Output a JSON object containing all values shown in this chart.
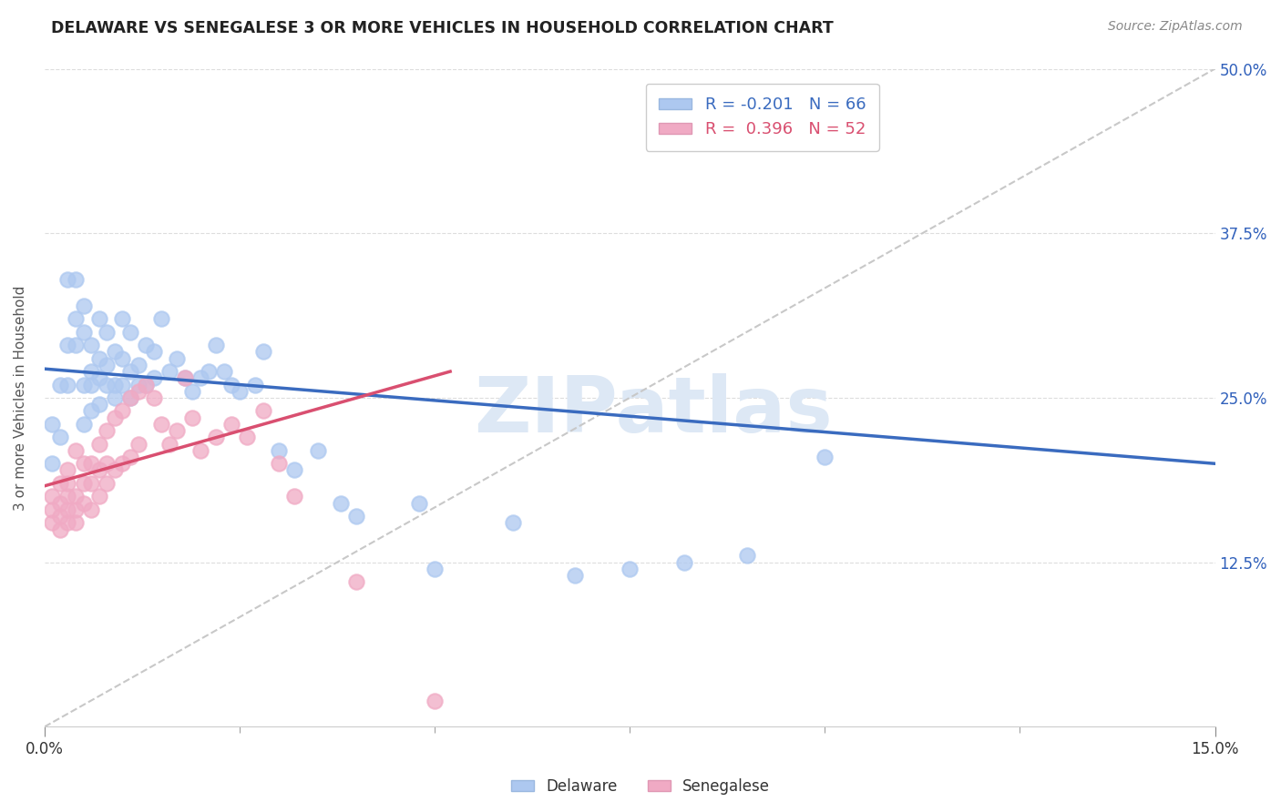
{
  "title": "DELAWARE VS SENEGALESE 3 OR MORE VEHICLES IN HOUSEHOLD CORRELATION CHART",
  "source": "Source: ZipAtlas.com",
  "ylabel": "3 or more Vehicles in Household",
  "watermark": "ZIPatlas",
  "legend_delaware": "R = -0.201   N = 66",
  "legend_senegalese": "R =  0.396   N = 52",
  "delaware_color": "#adc8f0",
  "senegalese_color": "#f0aac4",
  "delaware_line_color": "#3a6bbf",
  "senegalese_line_color": "#d94f70",
  "reference_line_color": "#c8c8c8",
  "xlim": [
    0.0,
    0.15
  ],
  "ylim": [
    0.0,
    0.5
  ],
  "del_line_x0": 0.0,
  "del_line_y0": 0.272,
  "del_line_x1": 0.15,
  "del_line_y1": 0.2,
  "sen_line_x0": 0.0,
  "sen_line_y0": 0.183,
  "sen_line_x1": 0.052,
  "sen_line_y1": 0.27,
  "delaware_x": [
    0.001,
    0.001,
    0.002,
    0.002,
    0.003,
    0.003,
    0.003,
    0.004,
    0.004,
    0.004,
    0.005,
    0.005,
    0.005,
    0.005,
    0.006,
    0.006,
    0.006,
    0.006,
    0.007,
    0.007,
    0.007,
    0.007,
    0.008,
    0.008,
    0.008,
    0.009,
    0.009,
    0.009,
    0.01,
    0.01,
    0.01,
    0.011,
    0.011,
    0.011,
    0.012,
    0.012,
    0.013,
    0.013,
    0.014,
    0.014,
    0.015,
    0.016,
    0.017,
    0.018,
    0.019,
    0.02,
    0.021,
    0.022,
    0.023,
    0.024,
    0.025,
    0.027,
    0.028,
    0.03,
    0.032,
    0.035,
    0.038,
    0.04,
    0.048,
    0.05,
    0.06,
    0.068,
    0.075,
    0.082,
    0.09,
    0.1
  ],
  "delaware_y": [
    0.2,
    0.23,
    0.22,
    0.26,
    0.26,
    0.29,
    0.34,
    0.29,
    0.31,
    0.34,
    0.23,
    0.26,
    0.3,
    0.32,
    0.24,
    0.26,
    0.27,
    0.29,
    0.245,
    0.265,
    0.28,
    0.31,
    0.26,
    0.275,
    0.3,
    0.25,
    0.26,
    0.285,
    0.26,
    0.28,
    0.31,
    0.25,
    0.27,
    0.3,
    0.26,
    0.275,
    0.26,
    0.29,
    0.265,
    0.285,
    0.31,
    0.27,
    0.28,
    0.265,
    0.255,
    0.265,
    0.27,
    0.29,
    0.27,
    0.26,
    0.255,
    0.26,
    0.285,
    0.21,
    0.195,
    0.21,
    0.17,
    0.16,
    0.17,
    0.12,
    0.155,
    0.115,
    0.12,
    0.125,
    0.13,
    0.205
  ],
  "senegalese_x": [
    0.001,
    0.001,
    0.001,
    0.002,
    0.002,
    0.002,
    0.002,
    0.003,
    0.003,
    0.003,
    0.003,
    0.003,
    0.004,
    0.004,
    0.004,
    0.004,
    0.005,
    0.005,
    0.005,
    0.006,
    0.006,
    0.006,
    0.007,
    0.007,
    0.007,
    0.008,
    0.008,
    0.008,
    0.009,
    0.009,
    0.01,
    0.01,
    0.011,
    0.011,
    0.012,
    0.012,
    0.013,
    0.014,
    0.015,
    0.016,
    0.017,
    0.018,
    0.019,
    0.02,
    0.022,
    0.024,
    0.026,
    0.028,
    0.03,
    0.032,
    0.04,
    0.05
  ],
  "senegalese_y": [
    0.155,
    0.165,
    0.175,
    0.15,
    0.16,
    0.17,
    0.185,
    0.155,
    0.165,
    0.175,
    0.185,
    0.195,
    0.155,
    0.165,
    0.175,
    0.21,
    0.17,
    0.185,
    0.2,
    0.165,
    0.185,
    0.2,
    0.175,
    0.195,
    0.215,
    0.185,
    0.2,
    0.225,
    0.195,
    0.235,
    0.2,
    0.24,
    0.205,
    0.25,
    0.215,
    0.255,
    0.26,
    0.25,
    0.23,
    0.215,
    0.225,
    0.265,
    0.235,
    0.21,
    0.22,
    0.23,
    0.22,
    0.24,
    0.2,
    0.175,
    0.11,
    0.02
  ]
}
